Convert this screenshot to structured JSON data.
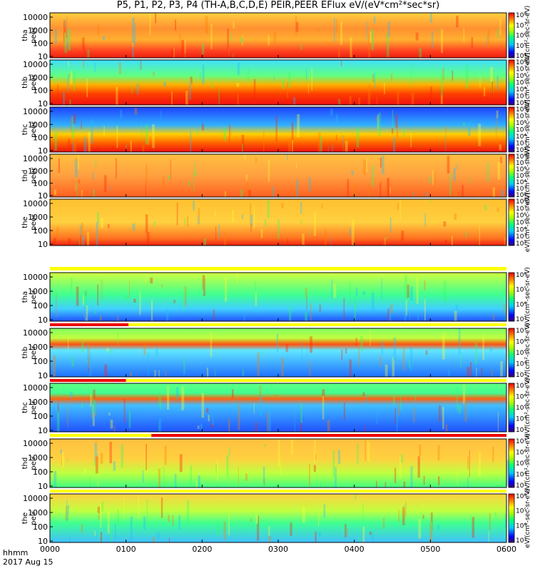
{
  "title": "P5, P1, P2, P3, P4 (TH-A,B,C,D,E) PEIR,PEER EFlux eV/(eV*cm²*sec*sr)",
  "colors": {
    "black": "#000000",
    "red_band": "#ee0000",
    "yellow_band": "#ffff00"
  },
  "chart_data": {
    "type": "heatmap",
    "x_ticks": [
      "0000",
      "0100",
      "0200",
      "0300",
      "0400",
      "0500",
      "0600"
    ],
    "x_range": [
      0,
      360
    ],
    "x_units_label": "hhmm",
    "date_label": "2017 Aug 15",
    "y_ticks": [
      "10",
      "100",
      "1000",
      "10000"
    ],
    "y_scale": "log",
    "panels": [
      {
        "probe": "tha",
        "species": "peer",
        "cb_ticks": [
          "10⁴",
          "10⁵",
          "10⁶",
          "10⁷",
          "10⁸"
        ],
        "cb_label": "eV/(cm²-sec-sr-eV)",
        "band": null
      },
      {
        "probe": "thb",
        "species": "peer",
        "cb_ticks": [
          "10²",
          "10³",
          "10⁴",
          "10⁵",
          "10⁶",
          "10⁷",
          "10⁸"
        ],
        "cb_label": "eV/(cm²-sec-sr-eV)",
        "band": null
      },
      {
        "probe": "thc",
        "species": "peer",
        "cb_ticks": [
          "10²",
          "10³",
          "10⁴",
          "10⁵",
          "10⁶",
          "10⁷",
          "10⁸"
        ],
        "cb_label": "eV/(cm²-sec-sr-eV)",
        "band": null
      },
      {
        "probe": "thd",
        "species": "peer",
        "cb_ticks": [
          "10²",
          "10³",
          "10⁴",
          "10⁵",
          "10⁶",
          "10⁷",
          "10⁸"
        ],
        "cb_label": "eV/(cm²-sec-sr-eV)",
        "band": null
      },
      {
        "probe": "the",
        "species": "peer",
        "cb_ticks": [
          "10²",
          "10³",
          "10⁴",
          "10⁵",
          "10⁶",
          "10⁷",
          "10⁸"
        ],
        "cb_label": "eV/(cm²-sec-sr-eV)",
        "band": null
      },
      {
        "probe": "tha",
        "species": "peir",
        "cb_ticks": [
          "10³",
          "10⁴",
          "10⁵",
          "10⁶"
        ],
        "cb_label": "eV/(cm²-sec-sr-eV)",
        "band": [
          [
            0,
            360,
            "yellow"
          ]
        ]
      },
      {
        "probe": "thb",
        "species": "peir",
        "cb_ticks": [
          "10³",
          "10⁴",
          "10⁵",
          "10⁶",
          "10⁷"
        ],
        "cb_label": "eV/(cm²-sec-sr-eV)",
        "band": [
          [
            0,
            62,
            "red"
          ],
          [
            62,
            360,
            "yellow"
          ]
        ]
      },
      {
        "probe": "thc",
        "species": "peir",
        "cb_ticks": [
          "10³",
          "10⁴",
          "10⁵",
          "10⁶",
          "10⁷"
        ],
        "cb_label": "eV/(cm²-sec-sr-eV)",
        "band": [
          [
            0,
            60,
            "red"
          ],
          [
            60,
            360,
            "yellow"
          ]
        ]
      },
      {
        "probe": "thd",
        "species": "peir",
        "cb_ticks": [
          "10³",
          "10⁴",
          "10⁵",
          "10⁶",
          "10⁷"
        ],
        "cb_label": "eV/(cm²-sec-sr-eV)",
        "band": [
          [
            0,
            80,
            "yellow"
          ],
          [
            80,
            360,
            "red"
          ]
        ]
      },
      {
        "probe": "the",
        "species": "peir",
        "cb_ticks": [
          "10³",
          "10⁴",
          "10⁵",
          "10⁶"
        ],
        "cb_label": "eV/(cm²-sec-sr-eV)",
        "band": [
          [
            0,
            360,
            "yellow"
          ]
        ]
      }
    ]
  }
}
